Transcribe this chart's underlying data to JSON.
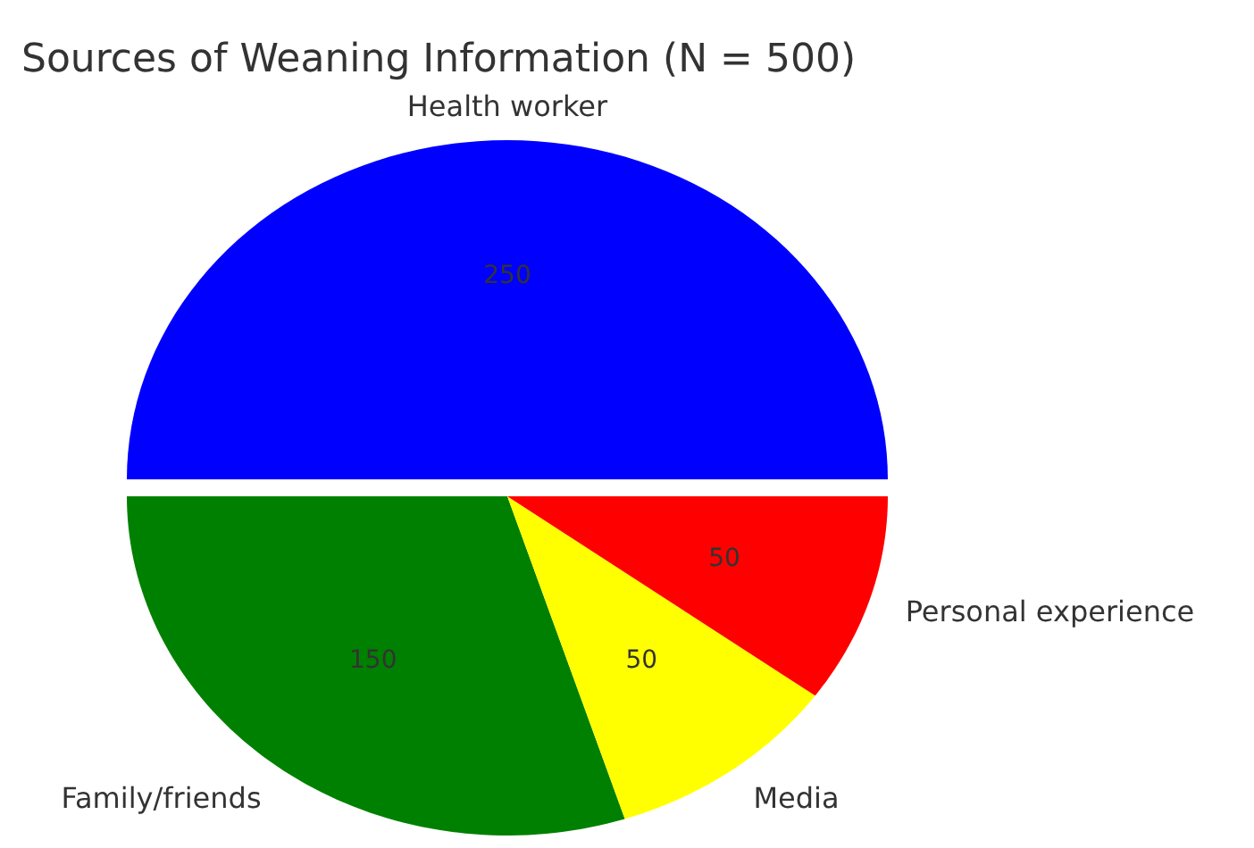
{
  "chart_data": {
    "type": "pie",
    "title": "Sources of Weaning Information (N = 500)",
    "categories": [
      "Health worker",
      "Family/friends",
      "Media",
      "Personal experience"
    ],
    "values": [
      250,
      150,
      50,
      50
    ],
    "colors": [
      "#0000ff",
      "#008000",
      "#ffff00",
      "#ff0000"
    ],
    "data_labels": true
  }
}
